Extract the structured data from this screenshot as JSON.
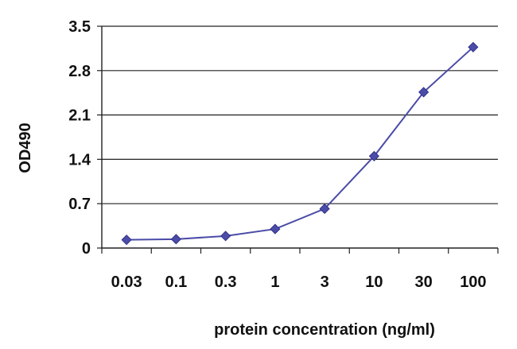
{
  "chart_data": {
    "type": "line",
    "title": "",
    "xlabel": "protein concentration (ng/ml)",
    "ylabel": "OD490",
    "categories": [
      "0.03",
      "0.1",
      "0.3",
      "1",
      "3",
      "10",
      "30",
      "100"
    ],
    "yticks": [
      "0",
      "0.7",
      "1.4",
      "2.1",
      "2.8",
      "3.5"
    ],
    "ylim": [
      0,
      3.5
    ],
    "grid": "horizontal",
    "legend": "none",
    "series": [
      {
        "values": [
          0.13,
          0.14,
          0.19,
          0.3,
          0.62,
          1.45,
          2.46,
          3.17
        ],
        "color": "#4b4ba8",
        "marker": "diamond"
      }
    ]
  }
}
